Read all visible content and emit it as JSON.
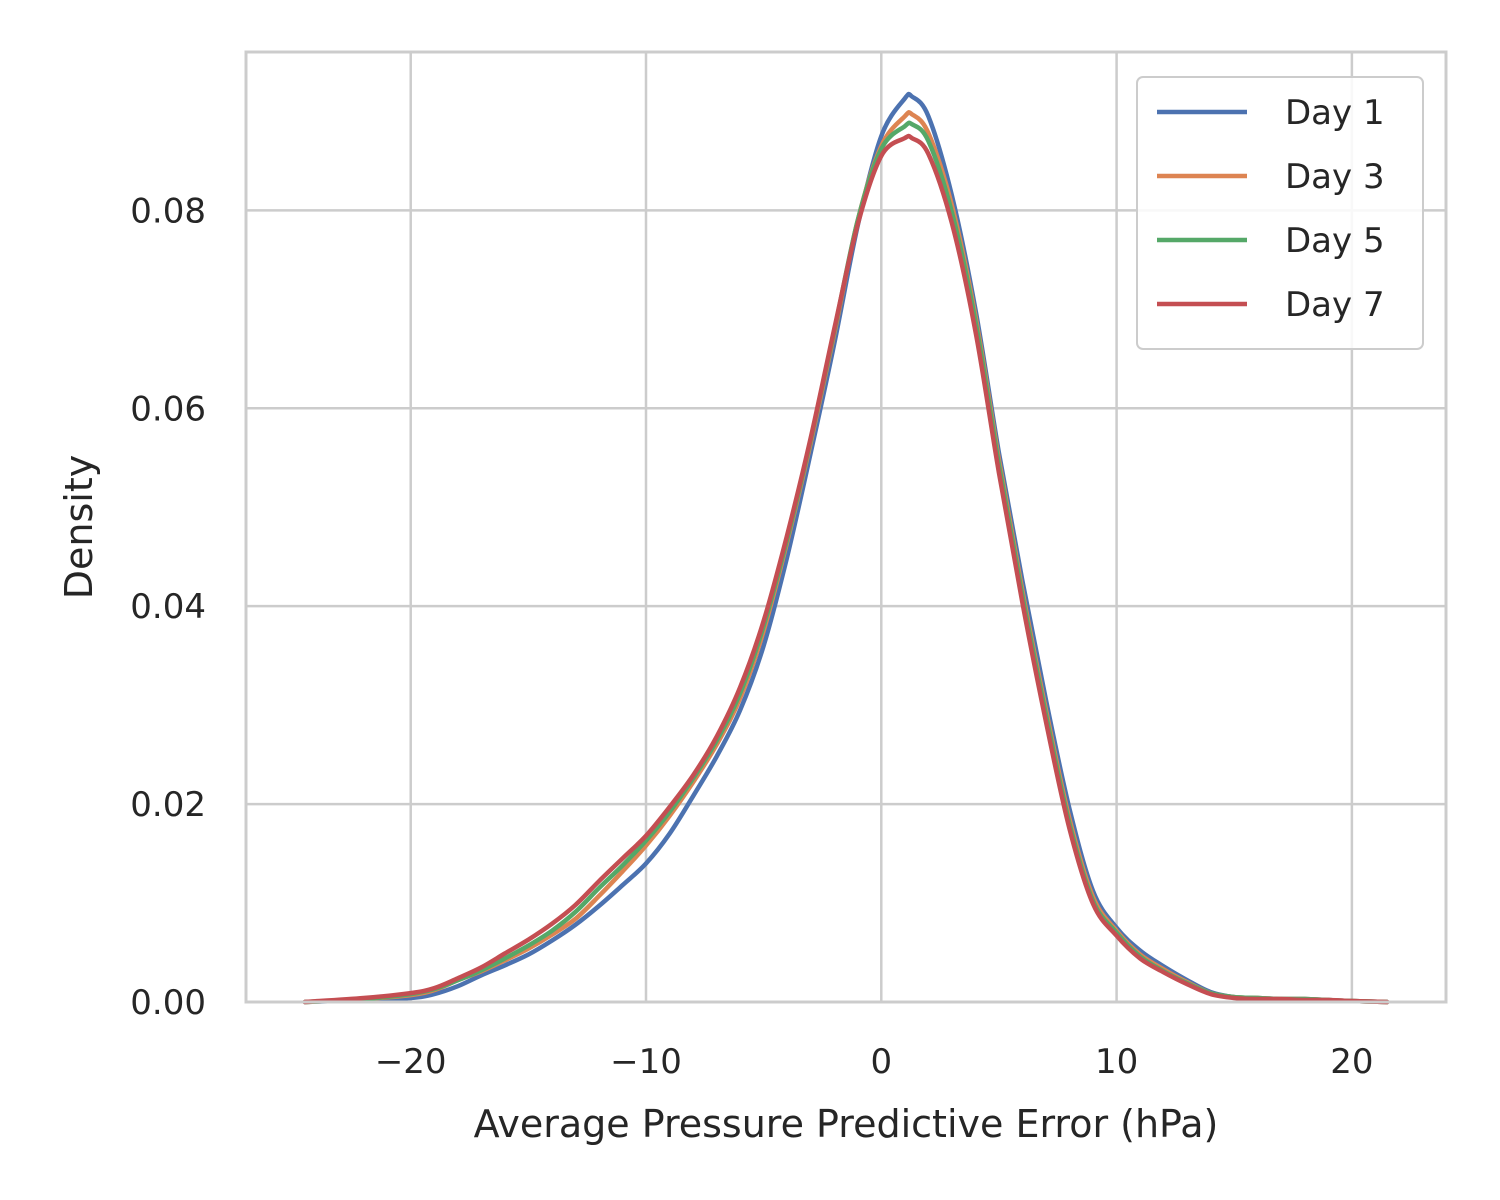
{
  "chart_data": {
    "type": "line",
    "xlabel": "Average Pressure Predictive Error (hPa)",
    "ylabel": "Density",
    "xlim": [
      -27,
      24
    ],
    "ylim": [
      0,
      0.096
    ],
    "xticks": [
      -20,
      -10,
      0,
      10,
      20
    ],
    "xtick_labels": [
      "−20",
      "−10",
      "0",
      "10",
      "20"
    ],
    "yticks": [
      0.0,
      0.02,
      0.04,
      0.06,
      0.08
    ],
    "ytick_labels": [
      "0.00",
      "0.02",
      "0.04",
      "0.06",
      "0.08"
    ],
    "grid": true,
    "legend_position": "top-right",
    "x": [
      -24.5,
      -22,
      -20,
      -19,
      -18,
      -17,
      -16,
      -15,
      -14,
      -13,
      -12,
      -11,
      -10,
      -9,
      -8,
      -7,
      -6,
      -5,
      -4,
      -3,
      -2,
      -1,
      0,
      1,
      1.3,
      2,
      3,
      4,
      5,
      6,
      7,
      8,
      9,
      10,
      11,
      12,
      13,
      14,
      15,
      16,
      17,
      18,
      19,
      20,
      21.5
    ],
    "series": [
      {
        "name": "Day 1",
        "color": "#4c72b0",
        "values": [
          0,
          0.0002,
          0.0004,
          0.0008,
          0.0016,
          0.0027,
          0.0037,
          0.0048,
          0.0062,
          0.0078,
          0.0097,
          0.0118,
          0.014,
          0.017,
          0.0208,
          0.0248,
          0.0295,
          0.036,
          0.045,
          0.0555,
          0.0665,
          0.0785,
          0.0875,
          0.0913,
          0.0915,
          0.0895,
          0.0815,
          0.07,
          0.0555,
          0.0425,
          0.0305,
          0.0195,
          0.0112,
          0.0075,
          0.0052,
          0.0036,
          0.0022,
          0.001,
          0.0005,
          0.0004,
          0.0003,
          0.0003,
          0.0002,
          0.0001,
          0
        ]
      },
      {
        "name": "Day 3",
        "color": "#dd8452",
        "values": [
          0,
          0.0003,
          0.0007,
          0.0012,
          0.0022,
          0.0031,
          0.0042,
          0.0054,
          0.0068,
          0.0084,
          0.0107,
          0.0132,
          0.0158,
          0.0188,
          0.0222,
          0.026,
          0.0307,
          0.0375,
          0.0465,
          0.0565,
          0.0675,
          0.079,
          0.0865,
          0.0895,
          0.0897,
          0.0878,
          0.0805,
          0.0693,
          0.0548,
          0.0415,
          0.0295,
          0.0185,
          0.0106,
          0.0072,
          0.0048,
          0.0033,
          0.002,
          0.0009,
          0.0005,
          0.0004,
          0.0003,
          0.0003,
          0.0002,
          0.0001,
          0
        ]
      },
      {
        "name": "Day 5",
        "color": "#55a868",
        "values": [
          0,
          0.0003,
          0.0008,
          0.0013,
          0.0022,
          0.0032,
          0.0044,
          0.0057,
          0.0072,
          0.0091,
          0.0115,
          0.0138,
          0.0163,
          0.0192,
          0.0226,
          0.0264,
          0.0312,
          0.038,
          0.0468,
          0.0568,
          0.0678,
          0.079,
          0.0862,
          0.0885,
          0.0887,
          0.087,
          0.0798,
          0.0688,
          0.0543,
          0.041,
          0.029,
          0.018,
          0.0102,
          0.007,
          0.0046,
          0.0031,
          0.0019,
          0.0009,
          0.0005,
          0.0004,
          0.0003,
          0.0003,
          0.0002,
          0.0001,
          0
        ]
      },
      {
        "name": "Day 7",
        "color": "#c44e52",
        "values": [
          0,
          0.0004,
          0.0009,
          0.0014,
          0.0024,
          0.0035,
          0.0049,
          0.0063,
          0.0079,
          0.0098,
          0.0122,
          0.0145,
          0.0168,
          0.0197,
          0.0229,
          0.0268,
          0.0318,
          0.0385,
          0.0472,
          0.057,
          0.068,
          0.0786,
          0.0855,
          0.0873,
          0.0873,
          0.0857,
          0.0787,
          0.0678,
          0.0535,
          0.0403,
          0.0283,
          0.0175,
          0.0099,
          0.0067,
          0.0044,
          0.003,
          0.0018,
          0.0008,
          0.0004,
          0.0003,
          0.0003,
          0.0002,
          0.0002,
          0.0001,
          0
        ]
      }
    ]
  }
}
